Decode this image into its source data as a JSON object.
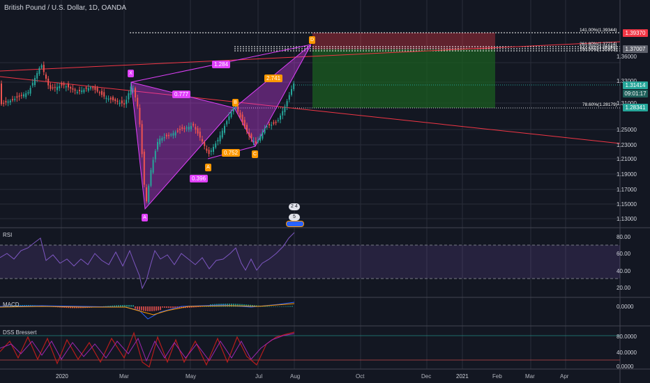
{
  "header": {
    "title": "British Pound / U.S. Dollar, 1D, OANDA"
  },
  "price_axis": {
    "levels": [
      "1.36000",
      "1.33000",
      "1.31000",
      "1.29000",
      "1.25000",
      "1.23000",
      "1.21000",
      "1.19000",
      "1.17000",
      "1.15000",
      "1.13000"
    ],
    "tags": {
      "stop": "1.39370",
      "target_top": "1.37007",
      "current": "1.31414",
      "countdown": "09:01:17",
      "target_low": "1.28341"
    }
  },
  "fib_labels": {
    "f141": "141.00%(1.39344)",
    "f2618": "261.80%(1.37214)",
    "f1272": "127.20%(1.36940)",
    "f100": "100.00%(1.35953)",
    "f786": "78.60%(1.28179)"
  },
  "pattern": {
    "points": {
      "x": "X",
      "a1": "A",
      "a2": "A",
      "b": "B",
      "c": "C",
      "d": "D"
    },
    "ratios": {
      "xb": "1.284",
      "ab": "0.777",
      "bd": "2.741",
      "ac": "0.752",
      "xa": "0.396"
    }
  },
  "icons": {
    "event1": "2 4",
    "event2": "5"
  },
  "rsi": {
    "name": "RSI",
    "levels": [
      "80.00",
      "60.00",
      "40.00",
      "20.00"
    ]
  },
  "macd": {
    "name": "MACD",
    "level": "0.0000"
  },
  "dss": {
    "name": "DSS Bressert",
    "levels": [
      "80.0000",
      "40.0000",
      "0.0000"
    ]
  },
  "time_axis": {
    "labels": [
      "2020",
      "Mar",
      "May",
      "Jul",
      "Aug",
      "Oct",
      "Dec",
      "2021",
      "Feb",
      "Mar",
      "Apr"
    ]
  },
  "colors": {
    "background": "#131722",
    "bear": "#ef5350",
    "bull": "#26a69a",
    "pattern": "#e040fb",
    "label_orange": "#ff9800",
    "stop_red": "#f23645",
    "target_green": "#1b5e20"
  }
}
